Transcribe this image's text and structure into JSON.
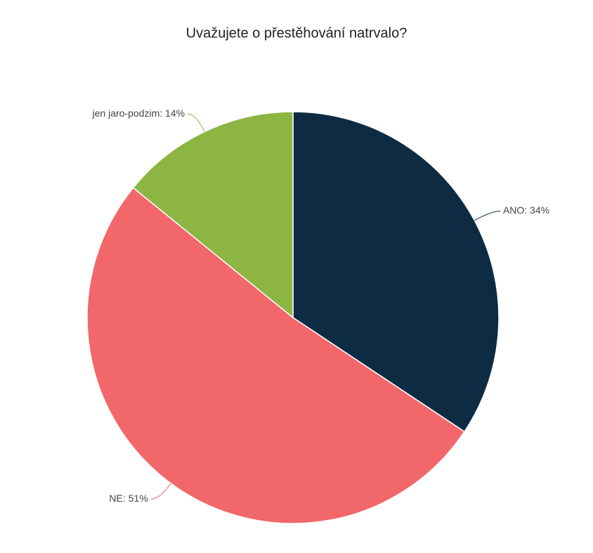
{
  "chart_data": {
    "type": "pie",
    "title": "Uvažujete o přestěhování natrvalo?",
    "values": [
      34,
      51,
      14
    ],
    "value_labels": [
      "ANO: 34%",
      "NE: 51%",
      "jen jaro-podzim: 14%"
    ],
    "colors": [
      "#0d2c43",
      "#f2676a",
      "#8db542"
    ]
  }
}
